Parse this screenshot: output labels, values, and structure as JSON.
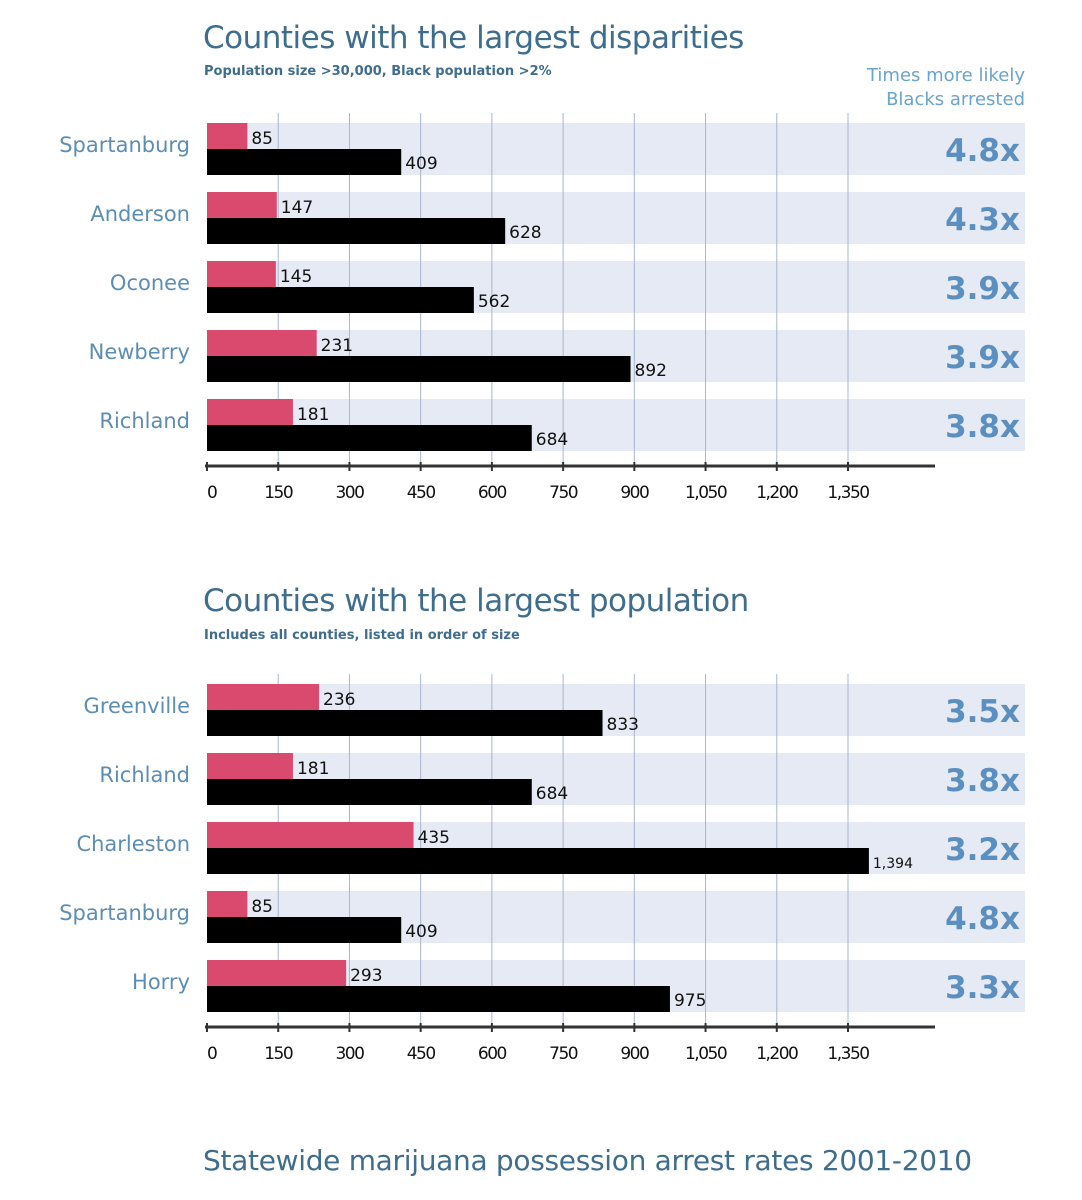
{
  "colors": {
    "white_bar": "#d94a6e",
    "black_bar": "#000000",
    "band": "#e6eaf4",
    "grid": "#a9b6cc",
    "label": "#5b8db5",
    "ratio": "#5b8fc0",
    "title": "#3f6d8e"
  },
  "footer": "Statewide marijuana possession arrest rates 2001-2010",
  "ratio_header": [
    "Times more likely",
    "Blacks arrested"
  ],
  "chart_data": [
    {
      "type": "bar",
      "orientation": "horizontal",
      "title": "Counties with the largest disparities",
      "subtitle": "Population size >30,000, Black population >2%",
      "categories": [
        "Spartanburg",
        "Anderson",
        "Oconee",
        "Newberry",
        "Richland"
      ],
      "series": [
        {
          "values": [
            85,
            147,
            145,
            231,
            181
          ],
          "color": "#d94a6e"
        },
        {
          "values": [
            409,
            628,
            562,
            892,
            684
          ],
          "color": "#000000"
        }
      ],
      "value_labels": [
        [
          "85",
          "147",
          "145",
          "231",
          "181"
        ],
        [
          "409",
          "628",
          "562",
          "892",
          "684"
        ]
      ],
      "ratios": [
        "4.8x",
        "4.3x",
        "3.9x",
        "3.9x",
        "3.8x"
      ],
      "xticks": [
        "0",
        "150",
        "300",
        "450",
        "600",
        "750",
        "900",
        "1,050",
        "1,200",
        "1,350"
      ],
      "xlim": [
        0,
        1350
      ],
      "grid": true
    },
    {
      "type": "bar",
      "orientation": "horizontal",
      "title": "Counties with the largest population",
      "subtitle": "Includes all counties, listed in order of size",
      "categories": [
        "Greenville",
        "Richland",
        "Charleston",
        "Spartanburg",
        "Horry"
      ],
      "series": [
        {
          "values": [
            236,
            181,
            435,
            85,
            293
          ],
          "color": "#d94a6e"
        },
        {
          "values": [
            833,
            684,
            1394,
            409,
            975
          ],
          "color": "#000000"
        }
      ],
      "value_labels": [
        [
          "236",
          "181",
          "435",
          "85",
          "293"
        ],
        [
          "833",
          "684",
          "1,394",
          "409",
          "975"
        ]
      ],
      "ratios": [
        "3.5x",
        "3.8x",
        "3.2x",
        "4.8x",
        "3.3x"
      ],
      "xticks": [
        "0",
        "150",
        "300",
        "450",
        "600",
        "750",
        "900",
        "1,050",
        "1,200",
        "1,350"
      ],
      "xlim": [
        0,
        1350
      ],
      "grid": true
    }
  ]
}
